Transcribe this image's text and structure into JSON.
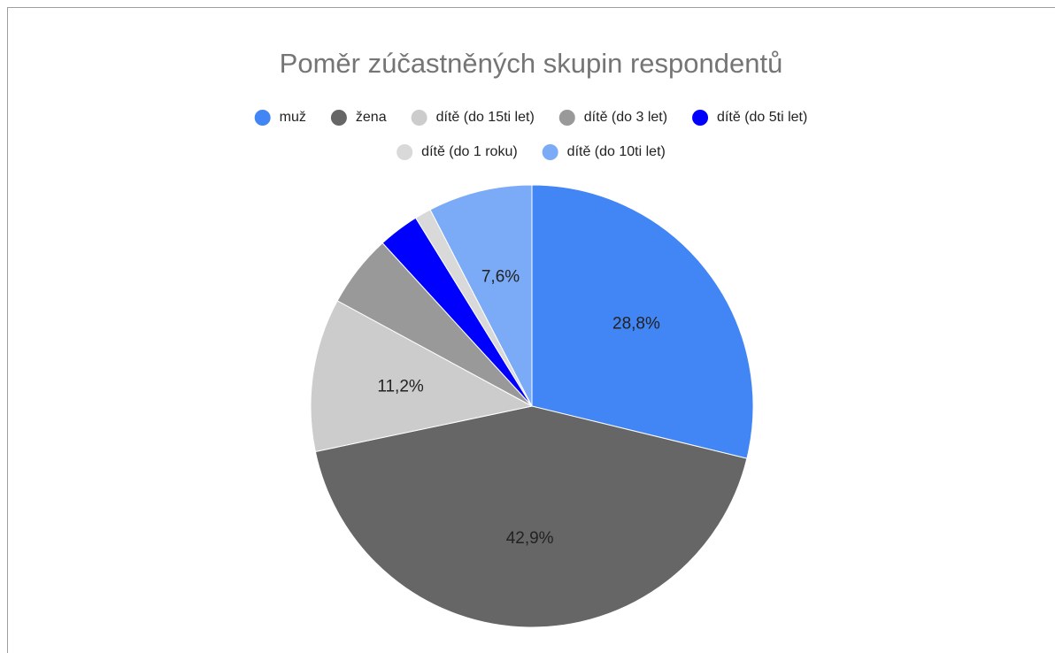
{
  "chart_data": {
    "type": "pie",
    "title": "Poměr zúčastněných skupin respondentů",
    "categories": [
      "muž",
      "žena",
      "dítě (do 15ti let)",
      "dítě (do 3 let)",
      "dítě (do 5ti let)",
      "dítě (do 1 roku)",
      "dítě (do 10ti let)"
    ],
    "values": [
      28.8,
      42.9,
      11.2,
      5.3,
      3.0,
      1.2,
      7.6
    ],
    "value_labels": [
      "28,8%",
      "42,9%",
      "11,2%",
      null,
      null,
      null,
      "7,6%"
    ],
    "colors": [
      "#4285f4",
      "#666666",
      "#cccccc",
      "#999999",
      "#0000ff",
      "#d9d9d9",
      "#7baaf7"
    ],
    "legend": "top"
  }
}
